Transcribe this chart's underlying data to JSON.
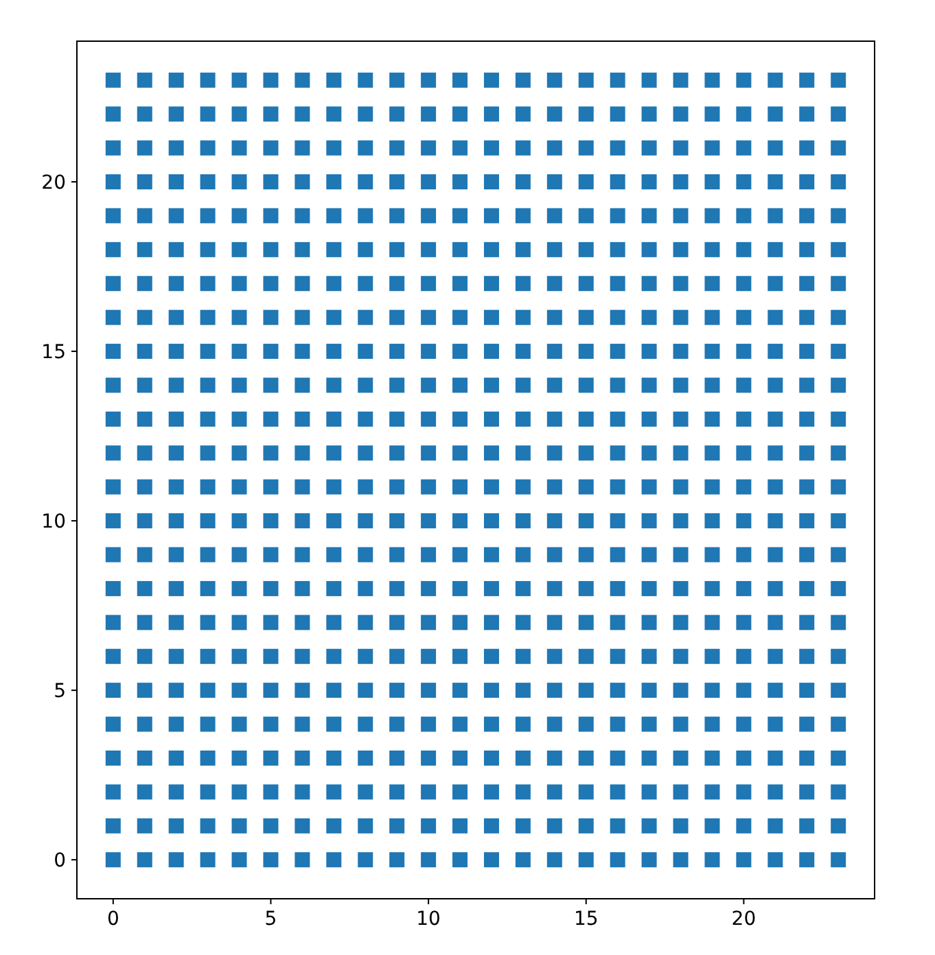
{
  "chart_data": {
    "type": "scatter",
    "marker": "square",
    "grid": false,
    "xlim": [
      -1.15,
      24.15
    ],
    "ylim": [
      -1.15,
      24.15
    ],
    "xticks": [
      0,
      5,
      10,
      15,
      20
    ],
    "yticks": [
      0,
      5,
      10,
      15,
      20
    ],
    "series": [
      {
        "color": "#1f77b4",
        "x": [
          0,
          1,
          2,
          3,
          4,
          5,
          6,
          7,
          8,
          9,
          10,
          11,
          12,
          13,
          14,
          15,
          16,
          17,
          18,
          19,
          20,
          21,
          22,
          23,
          0,
          1,
          2,
          3,
          4,
          5,
          6,
          7,
          8,
          9,
          10,
          11,
          12,
          13,
          14,
          15,
          16,
          17,
          18,
          19,
          20,
          21,
          22,
          23,
          0,
          1,
          2,
          3,
          4,
          5,
          6,
          7,
          8,
          9,
          10,
          11,
          12,
          13,
          14,
          15,
          16,
          17,
          18,
          19,
          20,
          21,
          22,
          23,
          0,
          1,
          2,
          3,
          4,
          5,
          6,
          7,
          8,
          9,
          10,
          11,
          12,
          13,
          14,
          15,
          16,
          17,
          18,
          19,
          20,
          21,
          22,
          23,
          0,
          1,
          2,
          3,
          4,
          5,
          6,
          7,
          8,
          9,
          10,
          11,
          12,
          13,
          14,
          15,
          16,
          17,
          18,
          19,
          20,
          21,
          22,
          23,
          0,
          1,
          2,
          3,
          4,
          5,
          6,
          7,
          8,
          9,
          10,
          11,
          12,
          13,
          14,
          15,
          16,
          17,
          18,
          19,
          20,
          21,
          22,
          23,
          0,
          1,
          2,
          3,
          4,
          5,
          6,
          7,
          8,
          9,
          10,
          11,
          12,
          13,
          14,
          15,
          16,
          17,
          18,
          19,
          20,
          21,
          22,
          23,
          0,
          1,
          2,
          3,
          4,
          5,
          6,
          7,
          8,
          9,
          10,
          11,
          12,
          13,
          14,
          15,
          16,
          17,
          18,
          19,
          20,
          21,
          22,
          23,
          0,
          1,
          2,
          3,
          4,
          5,
          6,
          7,
          8,
          9,
          10,
          11,
          12,
          13,
          14,
          15,
          16,
          17,
          18,
          19,
          20,
          21,
          22,
          23,
          0,
          1,
          2,
          3,
          4,
          5,
          6,
          7,
          8,
          9,
          10,
          11,
          12,
          13,
          14,
          15,
          16,
          17,
          18,
          19,
          20,
          21,
          22,
          23,
          0,
          1,
          2,
          3,
          4,
          5,
          6,
          7,
          8,
          9,
          10,
          11,
          12,
          13,
          14,
          15,
          16,
          17,
          18,
          19,
          20,
          21,
          22,
          23,
          0,
          1,
          2,
          3,
          4,
          5,
          6,
          7,
          8,
          9,
          10,
          11,
          12,
          13,
          14,
          15,
          16,
          17,
          18,
          19,
          20,
          21,
          22,
          23,
          0,
          1,
          2,
          3,
          4,
          5,
          6,
          7,
          8,
          9,
          10,
          11,
          12,
          13,
          14,
          15,
          16,
          17,
          18,
          19,
          20,
          21,
          22,
          23,
          0,
          1,
          2,
          3,
          4,
          5,
          6,
          7,
          8,
          9,
          10,
          11,
          12,
          13,
          14,
          15,
          16,
          17,
          18,
          19,
          20,
          21,
          22,
          23,
          0,
          1,
          2,
          3,
          4,
          5,
          6,
          7,
          8,
          9,
          10,
          11,
          12,
          13,
          14,
          15,
          16,
          17,
          18,
          19,
          20,
          21,
          22,
          23,
          0,
          1,
          2,
          3,
          4,
          5,
          6,
          7,
          8,
          9,
          10,
          11,
          12,
          13,
          14,
          15,
          16,
          17,
          18,
          19,
          20,
          21,
          22,
          23,
          0,
          1,
          2,
          3,
          4,
          5,
          6,
          7,
          8,
          9,
          10,
          11,
          12,
          13,
          14,
          15,
          16,
          17,
          18,
          19,
          20,
          21,
          22,
          23,
          0,
          1,
          2,
          3,
          4,
          5,
          6,
          7,
          8,
          9,
          10,
          11,
          12,
          13,
          14,
          15,
          16,
          17,
          18,
          19,
          20,
          21,
          22,
          23,
          0,
          1,
          2,
          3,
          4,
          5,
          6,
          7,
          8,
          9,
          10,
          11,
          12,
          13,
          14,
          15,
          16,
          17,
          18,
          19,
          20,
          21,
          22,
          23,
          0,
          1,
          2,
          3,
          4,
          5,
          6,
          7,
          8,
          9,
          10,
          11,
          12,
          13,
          14,
          15,
          16,
          17,
          18,
          19,
          20,
          21,
          22,
          23,
          0,
          1,
          2,
          3,
          4,
          5,
          6,
          7,
          8,
          9,
          10,
          11,
          12,
          13,
          14,
          15,
          16,
          17,
          18,
          19,
          20,
          21,
          22,
          23,
          0,
          1,
          2,
          3,
          4,
          5,
          6,
          7,
          8,
          9,
          10,
          11,
          12,
          13,
          14,
          15,
          16,
          17,
          18,
          19,
          20,
          21,
          22,
          23,
          0,
          1,
          2,
          3,
          4,
          5,
          6,
          7,
          8,
          9,
          10,
          11,
          12,
          13,
          14,
          15,
          16,
          17,
          18,
          19,
          20,
          21,
          22,
          23,
          0,
          1,
          2,
          3,
          4,
          5,
          6,
          7,
          8,
          9,
          10,
          11,
          12,
          13,
          14,
          15,
          16,
          17,
          18,
          19,
          20,
          21,
          22,
          23
        ],
        "values": [
          0,
          0,
          0,
          0,
          0,
          0,
          0,
          0,
          0,
          0,
          0,
          0,
          0,
          0,
          0,
          0,
          0,
          0,
          0,
          0,
          0,
          0,
          0,
          0,
          1,
          1,
          1,
          1,
          1,
          1,
          1,
          1,
          1,
          1,
          1,
          1,
          1,
          1,
          1,
          1,
          1,
          1,
          1,
          1,
          1,
          1,
          1,
          1,
          2,
          2,
          2,
          2,
          2,
          2,
          2,
          2,
          2,
          2,
          2,
          2,
          2,
          2,
          2,
          2,
          2,
          2,
          2,
          2,
          2,
          2,
          2,
          2,
          3,
          3,
          3,
          3,
          3,
          3,
          3,
          3,
          3,
          3,
          3,
          3,
          3,
          3,
          3,
          3,
          3,
          3,
          3,
          3,
          3,
          3,
          3,
          3,
          4,
          4,
          4,
          4,
          4,
          4,
          4,
          4,
          4,
          4,
          4,
          4,
          4,
          4,
          4,
          4,
          4,
          4,
          4,
          4,
          4,
          4,
          4,
          4,
          5,
          5,
          5,
          5,
          5,
          5,
          5,
          5,
          5,
          5,
          5,
          5,
          5,
          5,
          5,
          5,
          5,
          5,
          5,
          5,
          5,
          5,
          5,
          5,
          6,
          6,
          6,
          6,
          6,
          6,
          6,
          6,
          6,
          6,
          6,
          6,
          6,
          6,
          6,
          6,
          6,
          6,
          6,
          6,
          6,
          6,
          6,
          6,
          7,
          7,
          7,
          7,
          7,
          7,
          7,
          7,
          7,
          7,
          7,
          7,
          7,
          7,
          7,
          7,
          7,
          7,
          7,
          7,
          7,
          7,
          7,
          7,
          8,
          8,
          8,
          8,
          8,
          8,
          8,
          8,
          8,
          8,
          8,
          8,
          8,
          8,
          8,
          8,
          8,
          8,
          8,
          8,
          8,
          8,
          8,
          8,
          9,
          9,
          9,
          9,
          9,
          9,
          9,
          9,
          9,
          9,
          9,
          9,
          9,
          9,
          9,
          9,
          9,
          9,
          9,
          9,
          9,
          9,
          9,
          9,
          10,
          10,
          10,
          10,
          10,
          10,
          10,
          10,
          10,
          10,
          10,
          10,
          10,
          10,
          10,
          10,
          10,
          10,
          10,
          10,
          10,
          10,
          10,
          10,
          11,
          11,
          11,
          11,
          11,
          11,
          11,
          11,
          11,
          11,
          11,
          11,
          11,
          11,
          11,
          11,
          11,
          11,
          11,
          11,
          11,
          11,
          11,
          11,
          12,
          12,
          12,
          12,
          12,
          12,
          12,
          12,
          12,
          12,
          12,
          12,
          12,
          12,
          12,
          12,
          12,
          12,
          12,
          12,
          12,
          12,
          12,
          12,
          13,
          13,
          13,
          13,
          13,
          13,
          13,
          13,
          13,
          13,
          13,
          13,
          13,
          13,
          13,
          13,
          13,
          13,
          13,
          13,
          13,
          13,
          13,
          13,
          14,
          14,
          14,
          14,
          14,
          14,
          14,
          14,
          14,
          14,
          14,
          14,
          14,
          14,
          14,
          14,
          14,
          14,
          14,
          14,
          14,
          14,
          14,
          14,
          15,
          15,
          15,
          15,
          15,
          15,
          15,
          15,
          15,
          15,
          15,
          15,
          15,
          15,
          15,
          15,
          15,
          15,
          15,
          15,
          15,
          15,
          15,
          15,
          16,
          16,
          16,
          16,
          16,
          16,
          16,
          16,
          16,
          16,
          16,
          16,
          16,
          16,
          16,
          16,
          16,
          16,
          16,
          16,
          16,
          16,
          16,
          16,
          17,
          17,
          17,
          17,
          17,
          17,
          17,
          17,
          17,
          17,
          17,
          17,
          17,
          17,
          17,
          17,
          17,
          17,
          17,
          17,
          17,
          17,
          17,
          17,
          18,
          18,
          18,
          18,
          18,
          18,
          18,
          18,
          18,
          18,
          18,
          18,
          18,
          18,
          18,
          18,
          18,
          18,
          18,
          18,
          18,
          18,
          18,
          18,
          19,
          19,
          19,
          19,
          19,
          19,
          19,
          19,
          19,
          19,
          19,
          19,
          19,
          19,
          19,
          19,
          19,
          19,
          19,
          19,
          19,
          19,
          19,
          19,
          20,
          20,
          20,
          20,
          20,
          20,
          20,
          20,
          20,
          20,
          20,
          20,
          20,
          20,
          20,
          20,
          20,
          20,
          20,
          20,
          20,
          20,
          20,
          20,
          21,
          21,
          21,
          21,
          21,
          21,
          21,
          21,
          21,
          21,
          21,
          21,
          21,
          21,
          21,
          21,
          21,
          21,
          21,
          21,
          21,
          21,
          21,
          21,
          22,
          22,
          22,
          22,
          22,
          22,
          22,
          22,
          22,
          22,
          22,
          22,
          22,
          22,
          22,
          22,
          22,
          22,
          22,
          22,
          22,
          22,
          22,
          22,
          23,
          23,
          23,
          23,
          23,
          23,
          23,
          23,
          23,
          23,
          23,
          23,
          23,
          23,
          23,
          23,
          23,
          23,
          23,
          23,
          23,
          23,
          23,
          23
        ]
      }
    ]
  }
}
